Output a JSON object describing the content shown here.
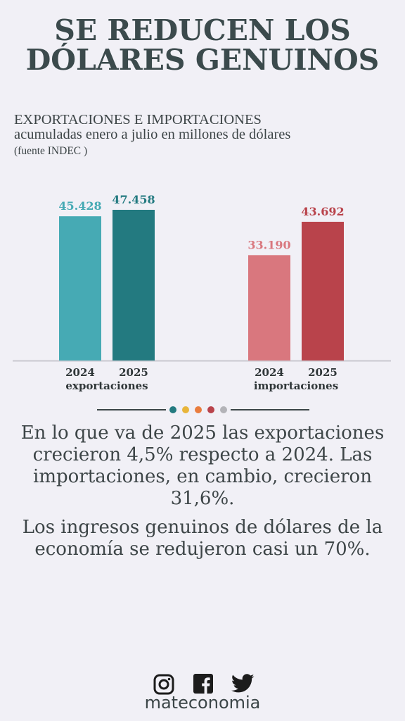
{
  "title": {
    "line1": "SE REDUCEN LOS",
    "line2": "DÓLARES GENUINOS"
  },
  "subtitle": {
    "line1": "EXPORTACIONES E IMPORTACIONES",
    "line2": "acumuladas enero a julio en millones de dólares",
    "source": "(fuente INDEC )"
  },
  "chart_data": {
    "type": "bar",
    "unit": "millones de dólares",
    "groups": [
      {
        "name": "exportaciones",
        "categories": [
          "2024",
          "2025"
        ],
        "values": [
          45428,
          47458
        ],
        "labels": [
          "45.428",
          "47.458"
        ],
        "colors": [
          "#46aab4",
          "#237a80"
        ]
      },
      {
        "name": "importaciones",
        "categories": [
          "2024",
          "2025"
        ],
        "values": [
          33190,
          43692
        ],
        "labels": [
          "33.190",
          "43.692"
        ],
        "colors": [
          "#d9777e",
          "#b9434b"
        ]
      }
    ],
    "ylim": [
      0,
      50000
    ],
    "grid": false
  },
  "divider_dots": [
    "#237a80",
    "#e8b53a",
    "#e97c3d",
    "#b9434b",
    "#b3b3b8"
  ],
  "body": {
    "paragraph1": "En lo que va de 2025 las exportaciones crecieron 4,5% respecto a 2024. Las importaciones, en cambio, crecieron 31,6%.",
    "paragraph2": "Los ingresos genuinos de dólares de la economía se redujeron casi un 70%."
  },
  "footer": {
    "icons": [
      "instagram-icon",
      "facebook-icon",
      "twitter-icon"
    ],
    "brand": "mateconomia"
  }
}
